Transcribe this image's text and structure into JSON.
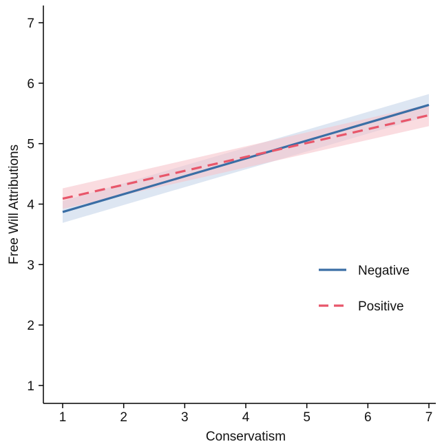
{
  "chart_data": {
    "type": "line",
    "title": "",
    "xlabel": "Conservatism",
    "ylabel": "Free Will Attributions",
    "xlim": [
      1,
      7
    ],
    "ylim": [
      1,
      7
    ],
    "x_ticks": [
      1,
      2,
      3,
      4,
      5,
      6,
      7
    ],
    "y_ticks": [
      1,
      2,
      3,
      4,
      5,
      6,
      7
    ],
    "x_tick_labels": [
      "1",
      "2",
      "3",
      "4",
      "5",
      "6",
      "7"
    ],
    "y_tick_labels": [
      "1",
      "2",
      "3",
      "4",
      "5",
      "6",
      "7"
    ],
    "grid": false,
    "legend_position": "lower-right",
    "series": [
      {
        "name": "Negative",
        "x": [
          1,
          7
        ],
        "y": [
          3.87,
          5.64
        ],
        "ci_lower": [
          3.69,
          5.46
        ],
        "ci_upper": [
          4.05,
          5.82
        ],
        "line_style": "solid",
        "color": "#3a6ea5",
        "band_color": "#c6d6ea"
      },
      {
        "name": "Positive",
        "x": [
          1,
          7
        ],
        "y": [
          4.09,
          5.47
        ],
        "ci_lower": [
          3.92,
          5.29
        ],
        "ci_upper": [
          4.26,
          5.65
        ],
        "line_style": "dashed",
        "color": "#e8566a",
        "band_color": "#f6c4cc"
      }
    ]
  }
}
